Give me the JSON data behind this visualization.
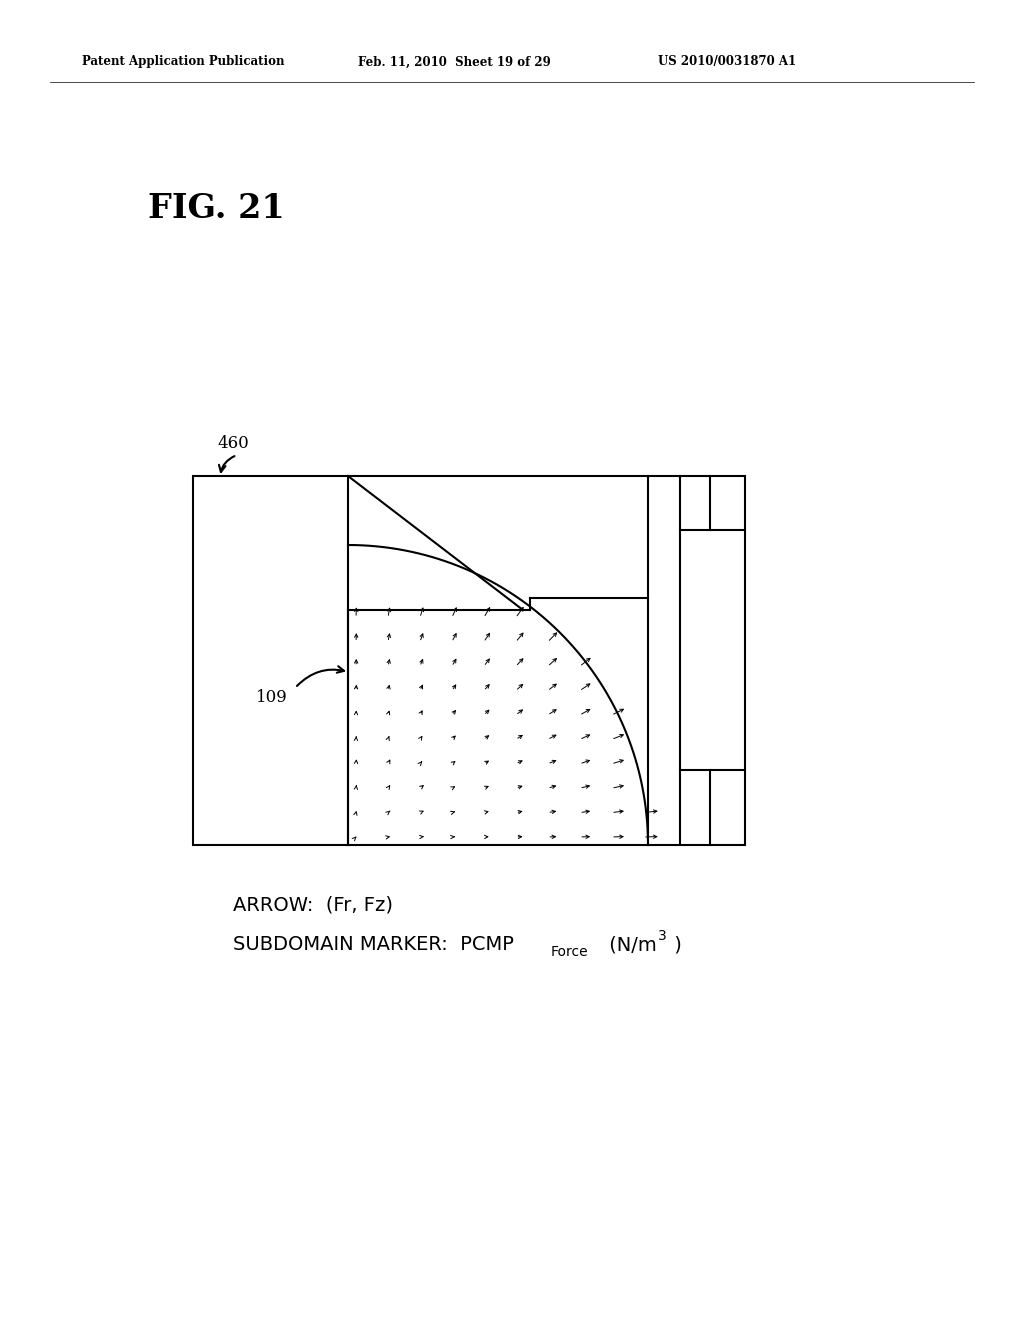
{
  "bg_color": "#ffffff",
  "fig_title_left": "Patent Application Publication",
  "fig_title_center": "Feb. 11, 2010  Sheet 19 of 29",
  "fig_title_right": "US 2010/0031870 A1",
  "fig_label": "FIG. 21",
  "label_460": "460",
  "label_109": "109",
  "annotation_line1": "ARROW:  (Fr, Fz)",
  "annotation_line2_pre": "SUBDOMAIN MARKER:  PCMP",
  "annotation_sub": "Force",
  "annotation_post": "(N/m",
  "annotation_exp": "3",
  "annotation_post2": " )"
}
